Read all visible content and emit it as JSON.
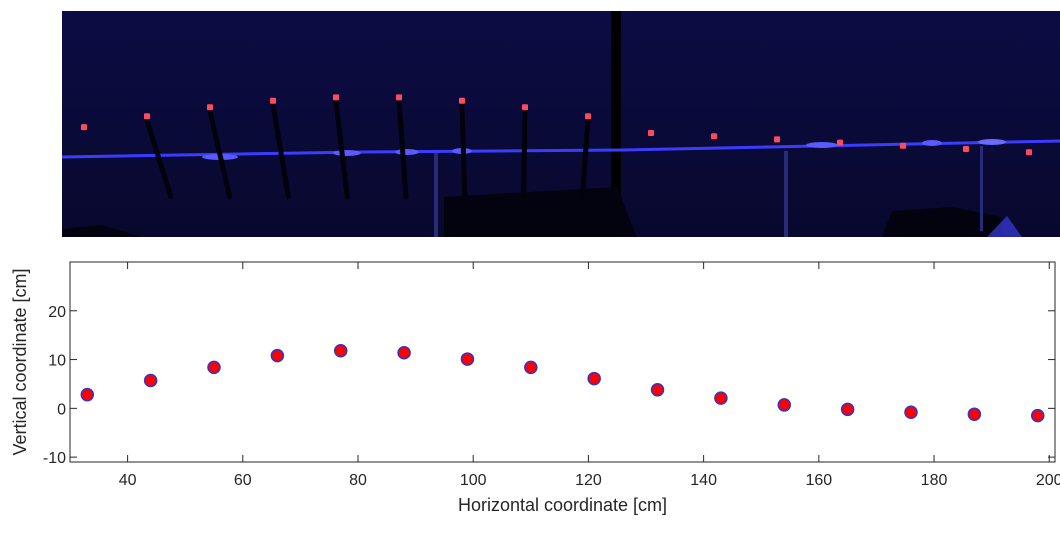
{
  "photo": {
    "background_color": "#0a0a3c",
    "wire_color": "#3c3cff",
    "marker_color": "#ff4a5e",
    "marker_count": 16
  },
  "chart_data": {
    "type": "scatter",
    "title": "",
    "xlabel": "Horizontal coordinate [cm]",
    "ylabel": "Vertical coordinate [cm]",
    "xlim": [
      30,
      201
    ],
    "ylim": [
      -11,
      30
    ],
    "xticks": [
      40,
      60,
      80,
      100,
      120,
      140,
      160,
      180,
      200
    ],
    "yticks": [
      -10,
      0,
      10,
      20
    ],
    "grid": false,
    "marker_fill": "#ff0000",
    "marker_edge": "#3333cc",
    "series": [
      {
        "x": [
          33,
          44,
          55,
          66,
          77,
          88,
          99,
          110,
          121,
          132,
          143,
          154,
          165,
          176,
          187,
          198
        ],
        "y": [
          2.8,
          5.7,
          8.4,
          10.8,
          11.8,
          11.4,
          10.1,
          8.4,
          6.1,
          3.8,
          2.1,
          0.7,
          -0.2,
          -0.8,
          -1.2,
          -1.5
        ]
      }
    ]
  }
}
